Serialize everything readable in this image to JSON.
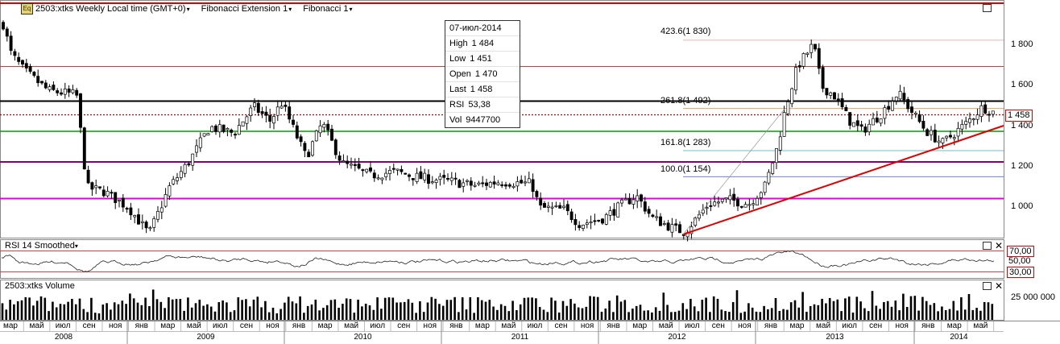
{
  "header": {
    "symbol": "2503:xtks Weekly Local time (GMT+0)",
    "study1": "Fibonacci Extension 1",
    "study2": "Fibonacci 1",
    "caret": "▾"
  },
  "tooltip": {
    "date": "07-июл-2014",
    "rows": [
      {
        "k": "High",
        "v": "1 484"
      },
      {
        "k": "Low",
        "v": "1 451"
      },
      {
        "k": "Open",
        "v": "1 470"
      },
      {
        "k": "Last",
        "v": "1 458"
      },
      {
        "k": "RSI",
        "v": "53,38"
      },
      {
        "k": "Vol",
        "v": "9447700"
      }
    ]
  },
  "price_axis": {
    "labels": [
      "1 800",
      "1 600",
      "1 400",
      "1 200",
      "1 000"
    ],
    "last_price": "1 458"
  },
  "fib_labels": [
    {
      "text": "423.6(1 830)",
      "color": "#f2a0a0"
    },
    {
      "text": "261.8(1 492)",
      "color": "#e08a3a"
    },
    {
      "text": "161.8(1 283)",
      "color": "#2a9a9a"
    },
    {
      "text": "100.0(1 154)",
      "color": "#2020a0"
    }
  ],
  "rsi_panel": {
    "title": "RSI 14 Smoothed",
    "levels": [
      "70,00",
      "50,00",
      "30,00"
    ]
  },
  "volume_panel": {
    "title": "2503:xtks Volume",
    "axis_label": "25 000 000"
  },
  "time_axis": {
    "months": [
      "мар",
      "май",
      "июл",
      "сен",
      "ноя",
      "янв",
      "мар",
      "май",
      "июл",
      "сен",
      "ноя",
      "янв",
      "мар",
      "май",
      "июл",
      "сен",
      "ноя",
      "янв",
      "мар",
      "май",
      "июл",
      "сен",
      "ноя",
      "янв",
      "мар",
      "май",
      "июл",
      "сен",
      "ноя",
      "янв",
      "мар",
      "май",
      "июл",
      "сен",
      "ноя",
      "янв",
      "мар",
      "май"
    ],
    "years": [
      "2008",
      "2009",
      "2010",
      "2011",
      "2012",
      "2013",
      "2014"
    ]
  },
  "colors": {
    "up_candle": "#ffffff",
    "down_candle": "#000000",
    "green_line": "#00a000",
    "magenta_line": "#e000e0",
    "purple_line": "#800080",
    "red_line": "#e00000",
    "black_line": "#000000"
  },
  "icons": [
    "restore-icon",
    "close-icon"
  ]
}
